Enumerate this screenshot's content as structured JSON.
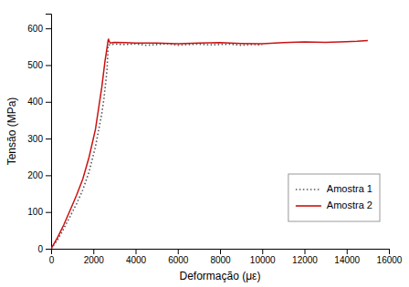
{
  "chart_data": {
    "type": "line",
    "xlabel": "Deformação (με)",
    "ylabel": "Tensão (MPa)",
    "xlim": [
      0,
      16000
    ],
    "ylim": [
      0,
      640
    ],
    "xticks": [
      0,
      2000,
      4000,
      6000,
      8000,
      10000,
      12000,
      14000,
      16000
    ],
    "yticks": [
      0,
      100,
      200,
      300,
      400,
      500,
      600
    ],
    "grid": false,
    "legend": "lower right",
    "series": [
      {
        "name": "Amostra 1",
        "color": "#555555",
        "line_style": "dotted",
        "x": [
          0,
          100,
          300,
          600,
          900,
          1200,
          1500,
          1800,
          2100,
          2400,
          2500,
          2550,
          2600,
          2650,
          2700,
          2800,
          3000,
          3500,
          4000,
          4500,
          5000,
          5500,
          6000,
          6500,
          7000,
          7500,
          8000,
          8500,
          9000,
          9500,
          10000
        ],
        "values": [
          0,
          8,
          24,
          55,
          88,
          122,
          160,
          210,
          278,
          368,
          408,
          435,
          460,
          490,
          554,
          556,
          557,
          556,
          558,
          554,
          556,
          558,
          554,
          556,
          557,
          555,
          556,
          557,
          554,
          556,
          555
        ]
      },
      {
        "name": "Amostra 2",
        "color": "#cc1111",
        "line_style": "solid",
        "x": [
          0,
          100,
          300,
          600,
          900,
          1200,
          1500,
          1800,
          2100,
          2400,
          2550,
          2650,
          2700,
          2720,
          2750,
          2800,
          2900,
          3000,
          3500,
          4000,
          5000,
          6000,
          7000,
          8000,
          9000,
          10000,
          11000,
          12000,
          13000,
          14000,
          14500,
          15000
        ],
        "values": [
          0,
          10,
          30,
          65,
          105,
          145,
          190,
          250,
          325,
          440,
          510,
          548,
          568,
          570,
          565,
          560,
          561,
          562,
          561,
          560,
          560,
          558,
          560,
          561,
          559,
          558,
          561,
          563,
          562,
          564,
          565,
          567
        ]
      }
    ]
  }
}
